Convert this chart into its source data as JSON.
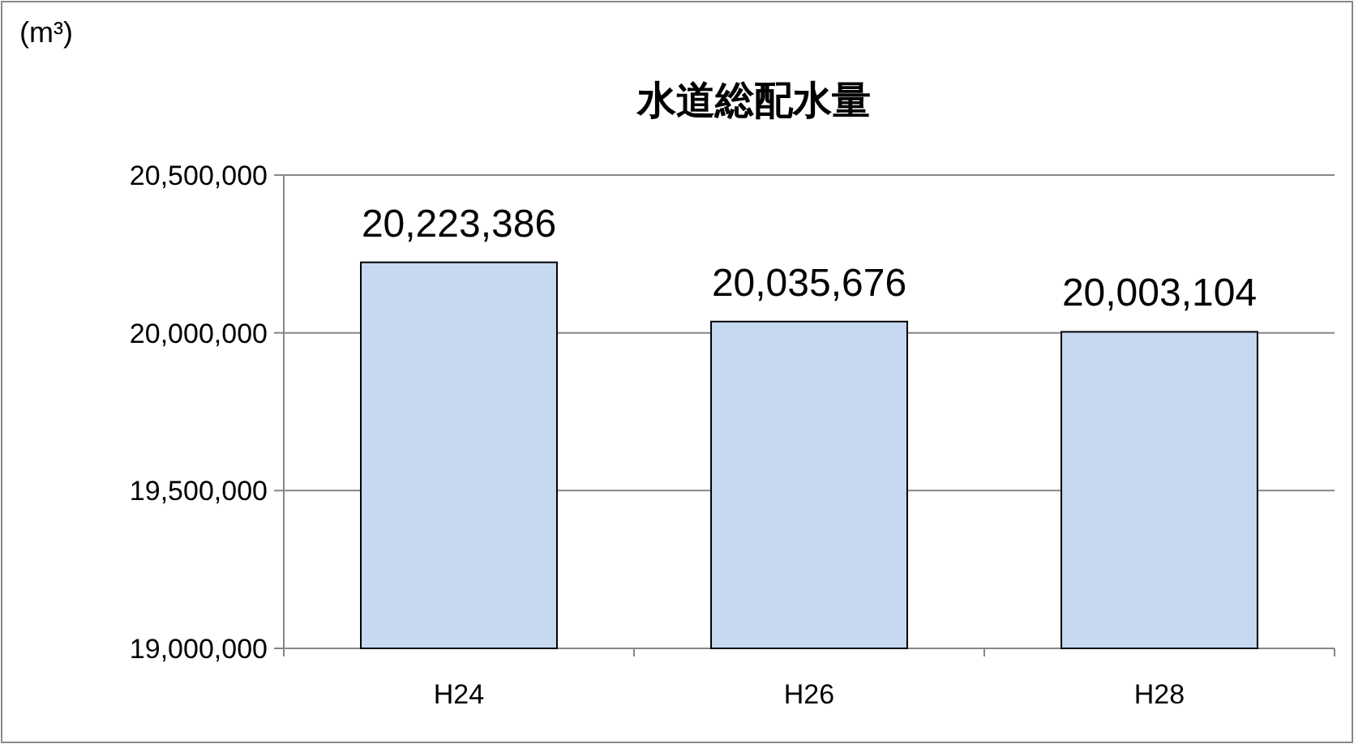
{
  "chart_data": {
    "type": "bar",
    "title": "水道総配水量",
    "ylabel": "(m³)",
    "categories": [
      "H24",
      "H26",
      "H28"
    ],
    "series": [
      {
        "color": "#c6d9f1",
        "values": [
          20223386,
          20035676,
          20003104
        ],
        "value_labels": [
          "20,223,386",
          "20,035,676",
          "20,003,104"
        ]
      }
    ],
    "ylim": [
      19000000,
      20500000
    ],
    "yticks": [
      {
        "value": 19000000,
        "label": "19,000,000"
      },
      {
        "value": 19500000,
        "label": "19,500,000"
      },
      {
        "value": 20000000,
        "label": "20,000,000"
      },
      {
        "value": 20500000,
        "label": "20,500,000"
      }
    ],
    "grid": "y"
  }
}
